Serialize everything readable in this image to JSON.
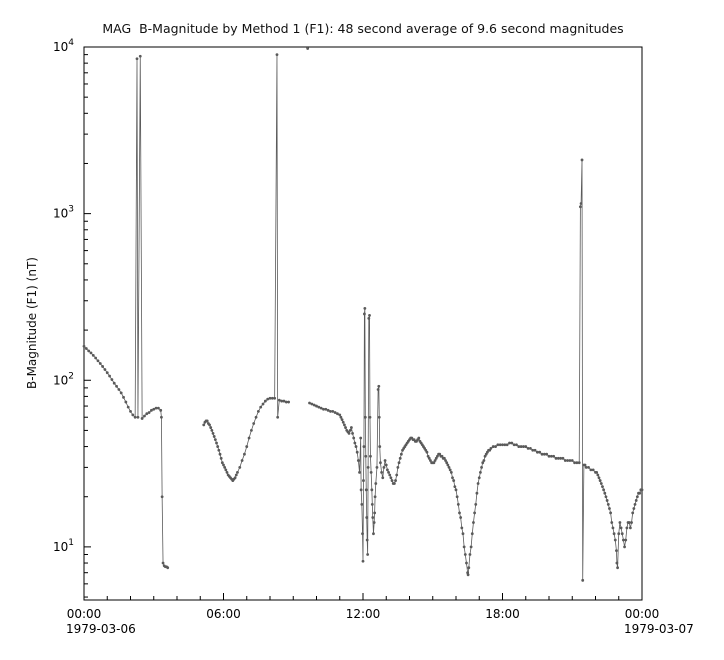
{
  "chart_data": {
    "type": "line",
    "title": "MAG  B-Magnitude by Method 1 (F1): 48 second average of 9.6 second magnitudes",
    "ylabel": "B-Magnitude (F1) (nT)",
    "xlabel": "",
    "x_axis": {
      "min": 0,
      "max": 24,
      "major_ticks": [
        {
          "value": 0,
          "label": "00:00"
        },
        {
          "value": 6,
          "label": "06:00"
        },
        {
          "value": 12,
          "label": "12:00"
        },
        {
          "value": 18,
          "label": "18:00"
        },
        {
          "value": 24,
          "label": "00:00"
        }
      ],
      "minor_tick_every": 1,
      "date_left": "1979-03-06",
      "date_right": "1979-03-07"
    },
    "y_axis": {
      "scale": "log",
      "min": 4.8,
      "max": 10000,
      "major_ticks": [
        {
          "value": 10,
          "exponent": 1
        },
        {
          "value": 100,
          "exponent": 2
        },
        {
          "value": 1000,
          "exponent": 3
        },
        {
          "value": 10000,
          "exponent": 4
        }
      ],
      "grid": false
    },
    "legend": null,
    "style": {
      "data_color": "#5a5a5a",
      "axis_color": "#000000",
      "line_width": 0.8,
      "marker_radius": 1.4
    },
    "series_name": "B-Magnitude (F1)",
    "segments": [
      [
        [
          0.0,
          160
        ],
        [
          0.1,
          155
        ],
        [
          0.2,
          150
        ],
        [
          0.3,
          146
        ],
        [
          0.4,
          141
        ],
        [
          0.5,
          136
        ],
        [
          0.6,
          131
        ],
        [
          0.7,
          126
        ],
        [
          0.8,
          121
        ],
        [
          0.9,
          116
        ],
        [
          1.0,
          111
        ],
        [
          1.1,
          106
        ],
        [
          1.2,
          101
        ],
        [
          1.3,
          96
        ],
        [
          1.4,
          92
        ],
        [
          1.5,
          88
        ],
        [
          1.6,
          84
        ],
        [
          1.7,
          79
        ],
        [
          1.8,
          74
        ],
        [
          1.9,
          69
        ],
        [
          2.0,
          65
        ],
        [
          2.1,
          62
        ],
        [
          2.2,
          60
        ],
        [
          2.28,
          8500
        ],
        [
          2.32,
          60
        ],
        [
          2.42,
          8800
        ],
        [
          2.5,
          59
        ],
        [
          2.6,
          61
        ],
        [
          2.7,
          63
        ],
        [
          2.8,
          64
        ],
        [
          2.9,
          66
        ],
        [
          3.0,
          67
        ],
        [
          3.1,
          68
        ],
        [
          3.2,
          68
        ],
        [
          3.3,
          66
        ],
        [
          3.33,
          60
        ],
        [
          3.36,
          20
        ],
        [
          3.4,
          8.0
        ],
        [
          3.45,
          7.7
        ],
        [
          3.5,
          7.6
        ],
        [
          3.55,
          7.6
        ],
        [
          3.6,
          7.5
        ]
      ],
      [
        [
          5.15,
          54
        ],
        [
          5.2,
          56
        ],
        [
          5.25,
          57
        ],
        [
          5.3,
          57
        ],
        [
          5.35,
          55
        ],
        [
          5.4,
          54
        ],
        [
          5.45,
          52
        ],
        [
          5.5,
          50
        ],
        [
          5.55,
          48
        ],
        [
          5.6,
          46
        ],
        [
          5.65,
          44
        ],
        [
          5.7,
          42
        ],
        [
          5.75,
          40
        ],
        [
          5.8,
          38
        ],
        [
          5.85,
          36
        ],
        [
          5.9,
          34
        ],
        [
          5.95,
          32
        ],
        [
          6.0,
          31
        ],
        [
          6.05,
          30
        ],
        [
          6.1,
          29
        ],
        [
          6.15,
          28
        ],
        [
          6.2,
          27
        ],
        [
          6.25,
          26.5
        ],
        [
          6.3,
          26
        ],
        [
          6.35,
          25.5
        ],
        [
          6.4,
          25
        ],
        [
          6.45,
          25.5
        ],
        [
          6.5,
          26
        ],
        [
          6.55,
          27
        ],
        [
          6.6,
          28
        ],
        [
          6.7,
          30
        ],
        [
          6.8,
          33
        ],
        [
          6.9,
          36
        ],
        [
          7.0,
          40
        ],
        [
          7.1,
          45
        ],
        [
          7.2,
          50
        ],
        [
          7.3,
          55
        ],
        [
          7.4,
          60
        ],
        [
          7.5,
          65
        ],
        [
          7.6,
          69
        ],
        [
          7.7,
          72
        ],
        [
          7.8,
          75
        ],
        [
          7.9,
          77
        ],
        [
          8.0,
          78
        ],
        [
          8.1,
          78
        ],
        [
          8.2,
          78
        ],
        [
          8.3,
          9000
        ],
        [
          8.33,
          60
        ],
        [
          8.4,
          76
        ],
        [
          8.5,
          75
        ],
        [
          8.6,
          75
        ],
        [
          8.7,
          74
        ],
        [
          8.8,
          74
        ]
      ],
      [
        [
          9.62,
          9800
        ]
      ],
      [
        [
          9.7,
          73
        ],
        [
          9.8,
          72
        ],
        [
          9.9,
          71
        ],
        [
          10.0,
          70
        ],
        [
          10.1,
          69
        ],
        [
          10.2,
          68
        ],
        [
          10.3,
          67
        ],
        [
          10.4,
          67
        ],
        [
          10.5,
          66
        ],
        [
          10.6,
          65
        ],
        [
          10.7,
          65
        ],
        [
          10.8,
          64
        ],
        [
          10.9,
          63
        ],
        [
          11.0,
          62
        ],
        [
          11.05,
          60
        ],
        [
          11.1,
          58
        ],
        [
          11.15,
          56
        ],
        [
          11.2,
          54
        ],
        [
          11.25,
          52
        ],
        [
          11.3,
          50
        ],
        [
          11.35,
          49
        ],
        [
          11.4,
          48
        ],
        [
          11.45,
          50
        ],
        [
          11.5,
          52
        ],
        [
          11.55,
          48
        ],
        [
          11.6,
          45
        ],
        [
          11.65,
          42
        ],
        [
          11.7,
          40
        ],
        [
          11.75,
          37
        ],
        [
          11.8,
          33
        ],
        [
          11.85,
          28
        ],
        [
          11.9,
          45
        ],
        [
          11.92,
          22
        ],
        [
          11.95,
          18
        ],
        [
          11.98,
          12
        ],
        [
          12.0,
          8.2
        ],
        [
          12.02,
          25
        ],
        [
          12.04,
          40
        ],
        [
          12.06,
          250
        ],
        [
          12.08,
          270
        ],
        [
          12.1,
          60
        ],
        [
          12.12,
          35
        ],
        [
          12.14,
          22
        ],
        [
          12.16,
          15
        ],
        [
          12.18,
          11
        ],
        [
          12.2,
          9
        ],
        [
          12.22,
          30
        ],
        [
          12.25,
          235
        ],
        [
          12.28,
          245
        ],
        [
          12.3,
          60
        ],
        [
          12.32,
          35
        ],
        [
          12.35,
          28
        ],
        [
          12.38,
          22
        ],
        [
          12.4,
          18
        ],
        [
          12.42,
          15
        ],
        [
          12.45,
          12
        ],
        [
          12.48,
          14
        ],
        [
          12.5,
          16
        ],
        [
          12.52,
          20
        ],
        [
          12.55,
          24
        ],
        [
          12.6,
          30
        ],
        [
          12.65,
          88
        ],
        [
          12.68,
          92
        ],
        [
          12.7,
          60
        ],
        [
          12.72,
          40
        ],
        [
          12.75,
          32
        ],
        [
          12.8,
          28
        ],
        [
          12.85,
          26
        ],
        [
          12.9,
          30
        ],
        [
          12.95,
          33
        ],
        [
          13.0,
          31
        ],
        [
          13.05,
          29
        ],
        [
          13.1,
          28
        ],
        [
          13.15,
          27
        ],
        [
          13.2,
          26
        ],
        [
          13.25,
          25
        ],
        [
          13.3,
          24
        ],
        [
          13.35,
          24
        ],
        [
          13.4,
          25
        ],
        [
          13.45,
          27
        ],
        [
          13.5,
          30
        ],
        [
          13.55,
          32
        ],
        [
          13.6,
          34
        ],
        [
          13.65,
          36
        ],
        [
          13.7,
          38
        ],
        [
          13.75,
          39
        ],
        [
          13.8,
          40
        ],
        [
          13.85,
          41
        ],
        [
          13.9,
          42
        ],
        [
          13.95,
          43
        ],
        [
          14.0,
          44
        ],
        [
          14.05,
          45
        ],
        [
          14.1,
          45
        ],
        [
          14.15,
          44
        ],
        [
          14.2,
          44
        ],
        [
          14.25,
          43
        ],
        [
          14.3,
          43
        ],
        [
          14.35,
          44
        ],
        [
          14.4,
          45
        ],
        [
          14.45,
          43
        ],
        [
          14.5,
          42
        ],
        [
          14.55,
          41
        ],
        [
          14.6,
          40
        ],
        [
          14.65,
          39
        ],
        [
          14.7,
          38
        ],
        [
          14.75,
          37
        ],
        [
          14.8,
          35
        ],
        [
          14.85,
          34
        ],
        [
          14.9,
          33
        ],
        [
          14.95,
          32
        ],
        [
          15.0,
          32
        ],
        [
          15.05,
          32
        ],
        [
          15.1,
          33
        ],
        [
          15.15,
          34
        ],
        [
          15.2,
          35
        ],
        [
          15.25,
          36
        ],
        [
          15.3,
          36
        ],
        [
          15.35,
          35
        ],
        [
          15.4,
          35
        ],
        [
          15.45,
          34
        ],
        [
          15.5,
          34
        ],
        [
          15.55,
          33
        ],
        [
          15.6,
          32
        ],
        [
          15.65,
          31
        ],
        [
          15.7,
          30
        ],
        [
          15.75,
          29
        ],
        [
          15.8,
          28
        ],
        [
          15.85,
          26
        ],
        [
          15.9,
          25
        ],
        [
          15.95,
          23
        ],
        [
          16.0,
          22
        ],
        [
          16.05,
          20
        ],
        [
          16.1,
          18
        ],
        [
          16.15,
          16
        ],
        [
          16.2,
          15
        ],
        [
          16.25,
          13
        ],
        [
          16.3,
          12
        ],
        [
          16.35,
          10
        ],
        [
          16.4,
          9
        ],
        [
          16.45,
          8
        ],
        [
          16.5,
          7
        ],
        [
          16.52,
          6.8
        ],
        [
          16.55,
          7.5
        ],
        [
          16.6,
          9
        ],
        [
          16.65,
          10
        ],
        [
          16.7,
          12
        ],
        [
          16.75,
          14
        ],
        [
          16.8,
          16
        ],
        [
          16.85,
          18
        ],
        [
          16.9,
          21
        ],
        [
          16.95,
          24
        ],
        [
          17.0,
          26
        ],
        [
          17.05,
          28
        ],
        [
          17.1,
          30
        ],
        [
          17.15,
          32
        ],
        [
          17.2,
          33
        ],
        [
          17.25,
          35
        ],
        [
          17.3,
          36
        ],
        [
          17.35,
          37
        ],
        [
          17.4,
          38
        ],
        [
          17.45,
          38
        ],
        [
          17.5,
          39
        ],
        [
          17.6,
          40
        ],
        [
          17.7,
          40
        ],
        [
          17.8,
          41
        ],
        [
          17.9,
          41
        ],
        [
          18.0,
          41
        ],
        [
          18.1,
          41
        ],
        [
          18.2,
          41
        ],
        [
          18.3,
          42
        ],
        [
          18.4,
          42
        ],
        [
          18.5,
          41
        ],
        [
          18.6,
          41
        ],
        [
          18.7,
          40
        ],
        [
          18.8,
          40
        ],
        [
          18.9,
          40
        ],
        [
          19.0,
          40
        ],
        [
          19.1,
          39
        ],
        [
          19.2,
          39
        ],
        [
          19.3,
          38
        ],
        [
          19.4,
          38
        ],
        [
          19.5,
          37
        ],
        [
          19.6,
          37
        ],
        [
          19.7,
          36
        ],
        [
          19.8,
          36
        ],
        [
          19.9,
          36
        ],
        [
          20.0,
          35
        ],
        [
          20.1,
          35
        ],
        [
          20.2,
          35
        ],
        [
          20.3,
          34
        ],
        [
          20.4,
          34
        ],
        [
          20.5,
          34
        ],
        [
          20.6,
          34
        ],
        [
          20.7,
          33
        ],
        [
          20.8,
          33
        ],
        [
          20.9,
          33
        ],
        [
          21.0,
          33
        ],
        [
          21.1,
          32
        ],
        [
          21.2,
          32
        ],
        [
          21.3,
          32
        ],
        [
          21.35,
          1100
        ],
        [
          21.38,
          1150
        ],
        [
          21.42,
          2100
        ],
        [
          21.45,
          6.3
        ],
        [
          21.5,
          31
        ],
        [
          21.55,
          31
        ],
        [
          21.6,
          30
        ],
        [
          21.7,
          30
        ],
        [
          21.8,
          29
        ],
        [
          21.9,
          29
        ],
        [
          22.0,
          28
        ],
        [
          22.05,
          28
        ],
        [
          22.1,
          27
        ],
        [
          22.15,
          26
        ],
        [
          22.2,
          25
        ],
        [
          22.25,
          24
        ],
        [
          22.3,
          23
        ],
        [
          22.35,
          22
        ],
        [
          22.4,
          21
        ],
        [
          22.45,
          20
        ],
        [
          22.5,
          19
        ],
        [
          22.55,
          18
        ],
        [
          22.6,
          17
        ],
        [
          22.65,
          16
        ],
        [
          22.7,
          14
        ],
        [
          22.75,
          13
        ],
        [
          22.8,
          12
        ],
        [
          22.85,
          11
        ],
        [
          22.9,
          9.5
        ],
        [
          22.92,
          8
        ],
        [
          22.95,
          7.5
        ],
        [
          23.0,
          12
        ],
        [
          23.05,
          14
        ],
        [
          23.1,
          13
        ],
        [
          23.15,
          12
        ],
        [
          23.2,
          11
        ],
        [
          23.25,
          10
        ],
        [
          23.3,
          11
        ],
        [
          23.35,
          13
        ],
        [
          23.4,
          14
        ],
        [
          23.45,
          14
        ],
        [
          23.5,
          13
        ],
        [
          23.55,
          14
        ],
        [
          23.6,
          16
        ],
        [
          23.65,
          17
        ],
        [
          23.7,
          18
        ],
        [
          23.75,
          19
        ],
        [
          23.8,
          20
        ],
        [
          23.85,
          21
        ],
        [
          23.9,
          21
        ],
        [
          23.95,
          22
        ],
        [
          24.0,
          22
        ]
      ]
    ]
  }
}
